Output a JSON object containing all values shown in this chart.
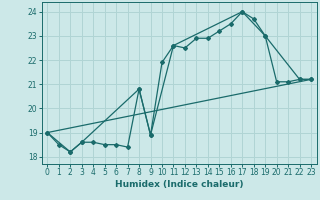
{
  "title": "",
  "xlabel": "Humidex (Indice chaleur)",
  "xlim": [
    -0.5,
    23.5
  ],
  "ylim": [
    17.7,
    24.4
  ],
  "yticks": [
    18,
    19,
    20,
    21,
    22,
    23,
    24
  ],
  "xticks": [
    0,
    1,
    2,
    3,
    4,
    5,
    6,
    7,
    8,
    9,
    10,
    11,
    12,
    13,
    14,
    15,
    16,
    17,
    18,
    19,
    20,
    21,
    22,
    23
  ],
  "bg_color": "#cce8e8",
  "grid_color": "#b0d4d4",
  "line_color": "#1a6b6b",
  "line1_x": [
    0,
    1,
    2,
    3,
    4,
    5,
    6,
    7,
    8,
    9,
    10,
    11,
    12,
    13,
    14,
    15,
    16,
    17,
    18,
    19,
    20,
    21,
    22,
    23
  ],
  "line1_y": [
    19.0,
    18.5,
    18.2,
    18.6,
    18.6,
    18.5,
    18.5,
    18.4,
    20.8,
    18.9,
    21.9,
    22.6,
    22.5,
    22.9,
    22.9,
    23.2,
    23.5,
    24.0,
    23.7,
    23.0,
    21.1,
    21.1,
    21.2,
    21.2
  ],
  "line2_x": [
    0,
    2,
    3,
    8,
    9,
    11,
    17,
    19,
    22,
    23
  ],
  "line2_y": [
    19.0,
    18.2,
    18.6,
    20.8,
    18.9,
    22.6,
    24.0,
    23.0,
    21.2,
    21.2
  ],
  "line3_x": [
    0,
    23
  ],
  "line3_y": [
    19.0,
    21.2
  ]
}
